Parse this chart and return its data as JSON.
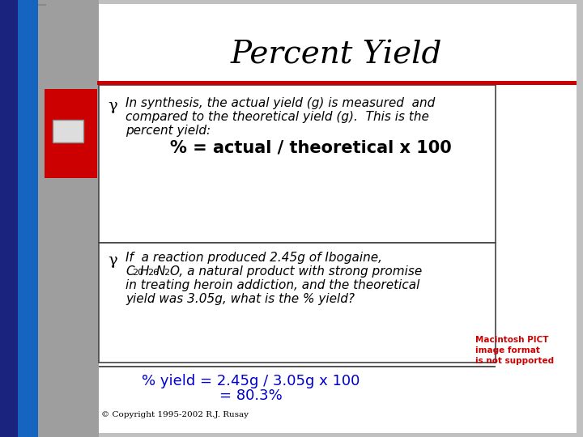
{
  "title": "Percent Yield",
  "title_fontsize": 28,
  "title_color": "#000000",
  "title_style": "italic",
  "bg_color": "#c0c0c0",
  "slide_bg": "#ffffff",
  "bullet_symbol": "γ",
  "bullet1_line1": "In synthesis, the actual yield (g) is measured  and",
  "bullet1_line2": "compared to the theoretical yield (g).  This is the",
  "bullet1_line3": "percent yield:",
  "formula_line": "% = actual / theoretical x 100",
  "bullet2_line1": "If  a reaction produced 2.45g of Ibogaine,",
  "bullet2_line2g": "O, a natural product with strong promise",
  "bullet2_line3": "in treating heroin addiction, and the theoretical",
  "bullet2_line4": "yield was 3.05g, what is the % yield?",
  "answer_line1": "% yield = 2.45g / 3.05g x 100",
  "answer_line2": "= 80.3%",
  "answer_color": "#0000cc",
  "copyright": "© Copyright 1995-2002 R.J. Rusay",
  "pict_text1": "Macintosh PICT",
  "pict_text2": "image format",
  "pict_text3": "is not supported",
  "pict_color": "#cc0000",
  "red_bar_color": "#cc0000",
  "separator_color": "#cc0000",
  "text_color": "#000000",
  "body_fontsize": 11,
  "formula_fontsize": 15,
  "answer_fontsize": 13
}
